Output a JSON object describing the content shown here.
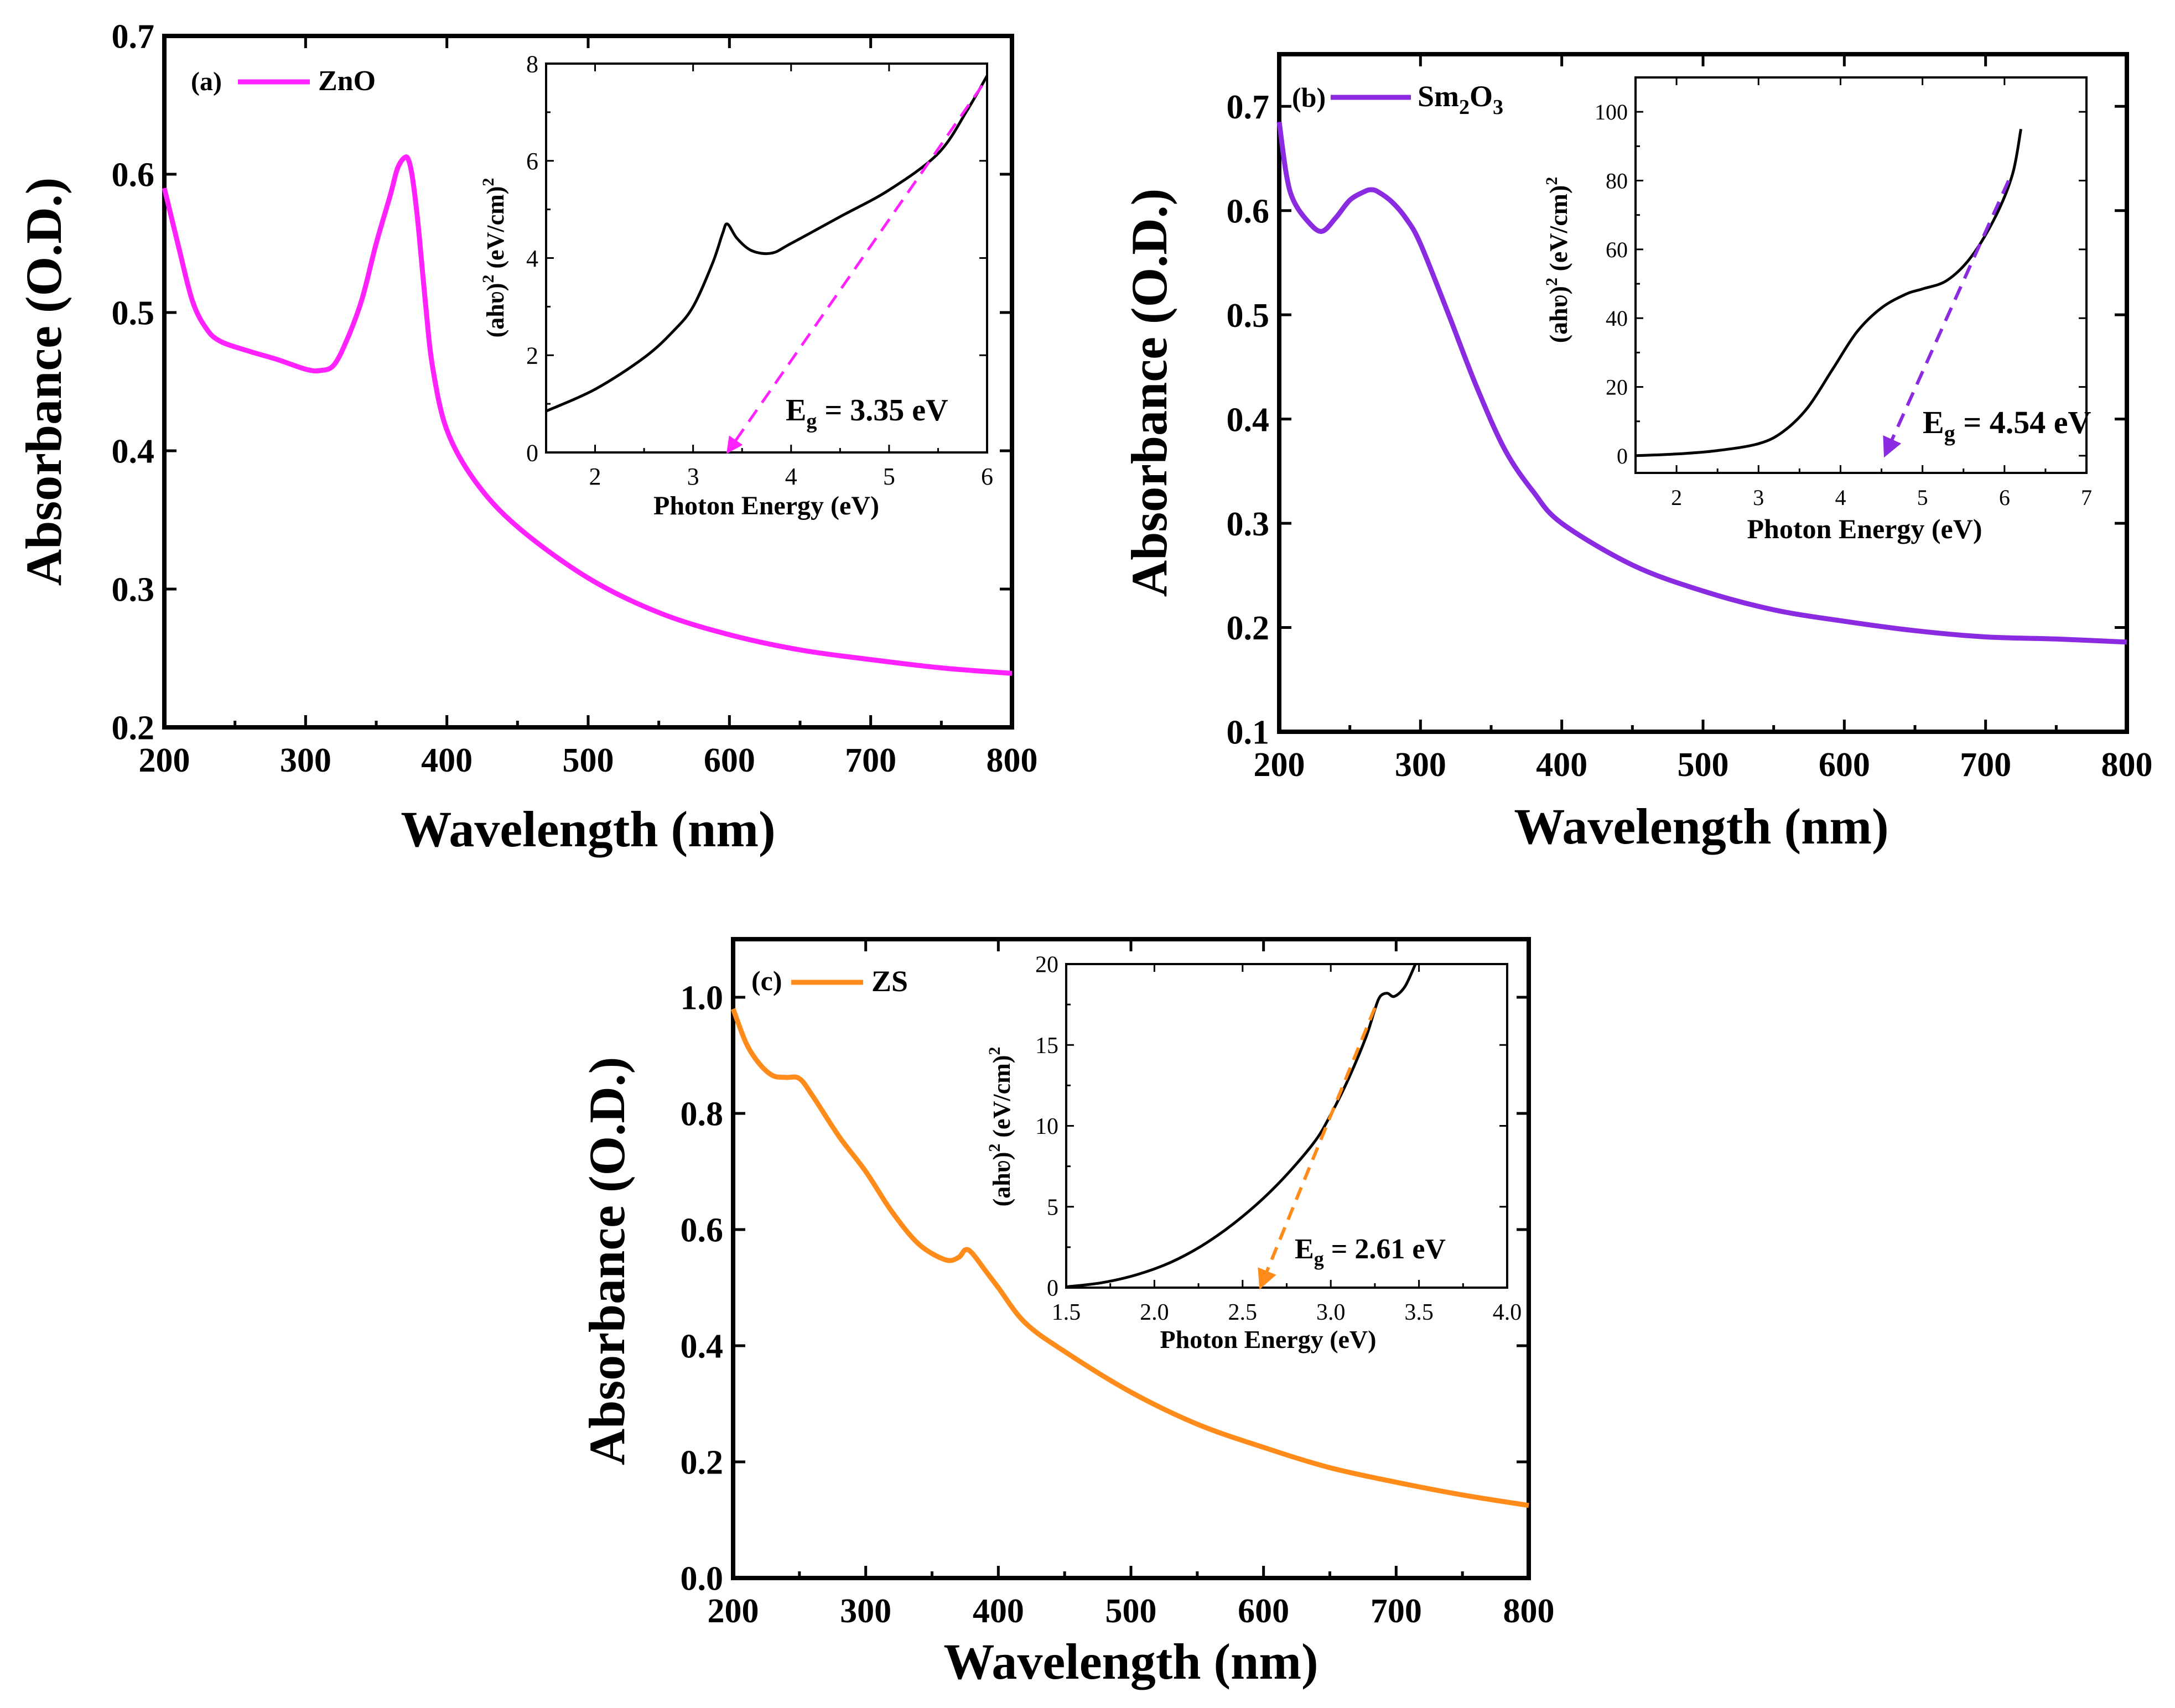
{
  "chart_data": [
    {
      "panel": "(a)",
      "type": "line",
      "xlabel": "Wavelength (nm)",
      "ylabel": "Absorbance (O.D.)",
      "xlim": [
        200,
        800
      ],
      "ylim": [
        0.2,
        0.7
      ],
      "xticks": [
        "200",
        "300",
        "400",
        "500",
        "600",
        "700",
        "800"
      ],
      "yticks": [
        "0.2",
        "0.3",
        "0.4",
        "0.5",
        "0.6",
        "0.7"
      ],
      "legend_position": "top-left",
      "series": [
        {
          "name": "ZnO",
          "color": "#ff22ff",
          "x": [
            200,
            210,
            220,
            230,
            240,
            260,
            280,
            300,
            310,
            320,
            330,
            340,
            350,
            360,
            365,
            370,
            373,
            376,
            380,
            385,
            390,
            400,
            420,
            450,
            500,
            550,
            600,
            650,
            700,
            750,
            800
          ],
          "y": [
            0.59,
            0.548,
            0.508,
            0.488,
            0.479,
            0.472,
            0.466,
            0.459,
            0.458,
            0.462,
            0.482,
            0.51,
            0.55,
            0.585,
            0.604,
            0.612,
            0.61,
            0.595,
            0.56,
            0.505,
            0.46,
            0.415,
            0.378,
            0.345,
            0.308,
            0.283,
            0.267,
            0.256,
            0.249,
            0.243,
            0.239
          ]
        }
      ],
      "inset": {
        "type": "line",
        "xlabel": "Photon Energy (eV)",
        "ylabel_main": "(ahʋ)",
        "ylabel_sup": "2",
        "ylabel_unit": "(eV/cm)",
        "ylabel_unit_sup": "2",
        "xlim": [
          1.5,
          6
        ],
        "ylim": [
          0,
          8
        ],
        "xticks": [
          "2",
          "3",
          "4",
          "5",
          "6"
        ],
        "yticks": [
          "0",
          "2",
          "4",
          "6",
          "8"
        ],
        "curve": {
          "x": [
            1.5,
            2.0,
            2.5,
            2.8,
            3.0,
            3.2,
            3.3,
            3.35,
            3.45,
            3.6,
            3.8,
            4.0,
            4.5,
            5.0,
            5.5,
            5.8,
            6.0
          ],
          "y": [
            0.85,
            1.3,
            1.95,
            2.5,
            3.0,
            3.9,
            4.5,
            4.7,
            4.4,
            4.15,
            4.1,
            4.3,
            4.85,
            5.4,
            6.15,
            7.05,
            7.75
          ]
        },
        "fit_line": {
          "color": "#ff22ff",
          "x": [
            3.35,
            5.95
          ],
          "y": [
            0,
            7.55
          ]
        },
        "annotation_main": "E",
        "annotation_sub": "g",
        "annotation_value": " = 3.35 eV"
      }
    },
    {
      "panel": "(b)",
      "type": "line",
      "xlabel": "Wavelength (nm)",
      "ylabel": "Absorbance (O.D.)",
      "xlim": [
        200,
        800
      ],
      "ylim": [
        0.1,
        0.75
      ],
      "xticks": [
        "200",
        "300",
        "400",
        "500",
        "600",
        "700",
        "800"
      ],
      "yticks": [
        "0.1",
        "0.2",
        "0.3",
        "0.4",
        "0.5",
        "0.6",
        "0.7"
      ],
      "legend_position": "top-left",
      "series": [
        {
          "name_main": "Sm",
          "name_sub1": "2",
          "name_mid": "O",
          "name_sub2": "3",
          "color": "#8a2be2",
          "x": [
            200,
            205,
            210,
            220,
            230,
            240,
            250,
            260,
            265,
            270,
            280,
            290,
            300,
            320,
            340,
            360,
            380,
            400,
            450,
            500,
            550,
            600,
            650,
            700,
            750,
            800
          ],
          "y": [
            0.685,
            0.635,
            0.61,
            0.59,
            0.58,
            0.593,
            0.61,
            0.618,
            0.62,
            0.618,
            0.608,
            0.592,
            0.568,
            0.5,
            0.43,
            0.37,
            0.33,
            0.3,
            0.26,
            0.235,
            0.217,
            0.206,
            0.197,
            0.191,
            0.189,
            0.186
          ]
        }
      ],
      "inset": {
        "type": "line",
        "xlabel": "Photon Energy (eV)",
        "ylabel_main": "(ahʋ)",
        "ylabel_sup": "2",
        "ylabel_unit": "(eV/cm)",
        "ylabel_unit_sup": "2",
        "xlim": [
          1.5,
          7
        ],
        "ylim": [
          -5,
          110
        ],
        "xticks": [
          "2",
          "3",
          "4",
          "5",
          "6",
          "7"
        ],
        "yticks": [
          "0",
          "20",
          "40",
          "60",
          "80",
          "100"
        ],
        "curve": {
          "x": [
            1.5,
            2.0,
            2.5,
            3.0,
            3.3,
            3.6,
            3.9,
            4.2,
            4.5,
            4.8,
            5.0,
            5.3,
            5.6,
            5.9,
            6.1,
            6.2
          ],
          "y": [
            0,
            0.5,
            1.5,
            3.5,
            7,
            14,
            25,
            36,
            43,
            47,
            48.5,
            51,
            58,
            70,
            82,
            95
          ]
        },
        "fit_line": {
          "color": "#8a2be2",
          "x": [
            4.54,
            6.05
          ],
          "y": [
            0,
            80
          ]
        },
        "annotation_main": "E",
        "annotation_sub": "g",
        "annotation_value": " = 4.54 eV"
      }
    },
    {
      "panel": "(c)",
      "type": "line",
      "xlabel": "Wavelength (nm)",
      "ylabel": "Absorbance (O.D.)",
      "xlim": [
        200,
        800
      ],
      "ylim": [
        0,
        1.1
      ],
      "xticks": [
        "200",
        "300",
        "400",
        "500",
        "600",
        "700",
        "800"
      ],
      "yticks": [
        "0.0",
        "0.2",
        "0.4",
        "0.6",
        "0.8",
        "1.0"
      ],
      "legend_position": "top-left",
      "series": [
        {
          "name": "ZS",
          "color": "#ff8c1a",
          "x": [
            200,
            210,
            220,
            230,
            240,
            250,
            260,
            280,
            300,
            320,
            340,
            360,
            370,
            375,
            380,
            390,
            400,
            420,
            450,
            500,
            550,
            600,
            650,
            700,
            750,
            800
          ],
          "y": [
            0.98,
            0.92,
            0.885,
            0.865,
            0.862,
            0.86,
            0.83,
            0.76,
            0.7,
            0.63,
            0.575,
            0.548,
            0.552,
            0.565,
            0.56,
            0.53,
            0.5,
            0.44,
            0.39,
            0.32,
            0.265,
            0.225,
            0.19,
            0.165,
            0.143,
            0.125
          ]
        }
      ],
      "inset": {
        "type": "line",
        "xlabel": "Photon Energy (eV)",
        "ylabel_main": "(ahʋ)",
        "ylabel_sup": "2",
        "ylabel_unit": "(eV/cm)",
        "ylabel_unit_sup": "2",
        "xlim": [
          1.5,
          4.0
        ],
        "ylim": [
          0,
          20
        ],
        "xticks": [
          "1.5",
          "2.0",
          "2.5",
          "3.0",
          "3.5",
          "4.0"
        ],
        "yticks": [
          "0",
          "5",
          "10",
          "15",
          "20"
        ],
        "curve": {
          "x": [
            1.5,
            1.7,
            1.9,
            2.1,
            2.3,
            2.5,
            2.7,
            2.9,
            3.0,
            3.1,
            3.2,
            3.25,
            3.28,
            3.32,
            3.36,
            3.42,
            3.48
          ],
          "y": [
            0.05,
            0.3,
            0.8,
            1.6,
            2.8,
            4.4,
            6.4,
            8.9,
            10.7,
            12.9,
            15.5,
            17.2,
            18.0,
            18.2,
            18.0,
            18.6,
            20.0
          ]
        },
        "fit_line": {
          "color": "#ff8c1a",
          "x": [
            2.6,
            3.25
          ],
          "y": [
            0,
            17.3
          ]
        },
        "annotation_main": "E",
        "annotation_sub": "g",
        "annotation_value": " = 2.61 eV"
      }
    }
  ]
}
